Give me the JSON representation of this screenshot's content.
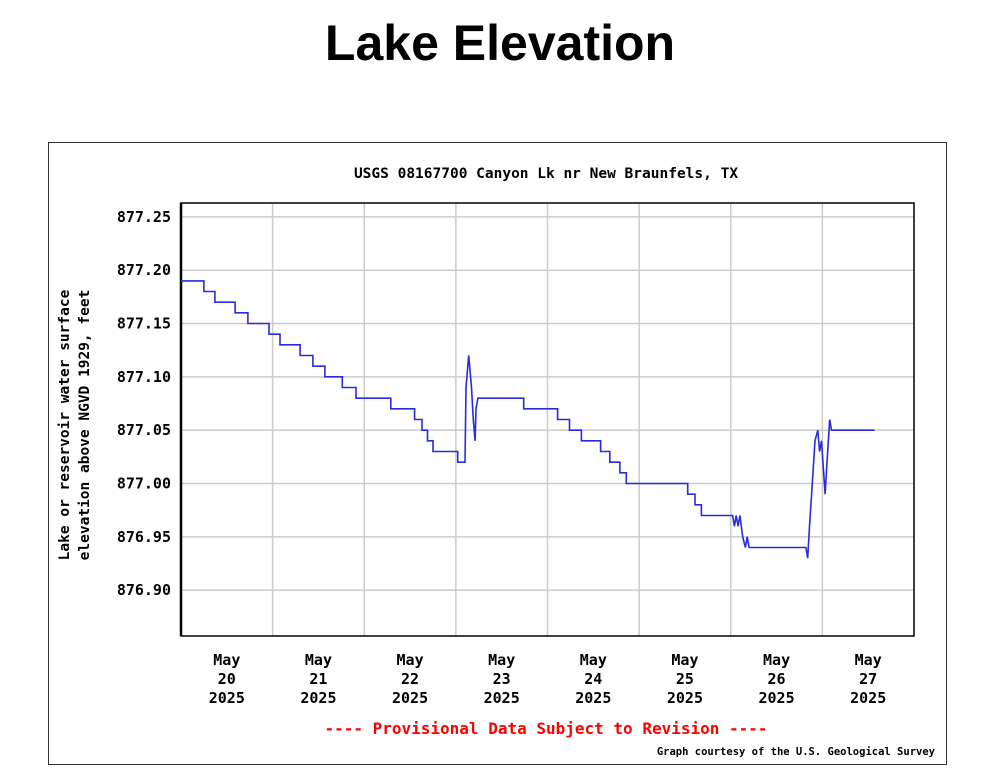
{
  "page_title": "Lake Elevation",
  "chart_data": {
    "type": "line",
    "title": "USGS 08167700 Canyon Lk nr New Braunfels, TX",
    "ylabel_lines": [
      "Lake or reservoir water surface",
      "elevation above NGVD 1929, feet"
    ],
    "xlabel": "",
    "ylim": [
      876.857,
      877.263
    ],
    "yticks": [
      877.25,
      877.2,
      877.15,
      877.1,
      877.05,
      877.0,
      876.95,
      876.9
    ],
    "ytick_labels": [
      "877.25",
      "877.20",
      "877.15",
      "877.10",
      "877.05",
      "877.00",
      "876.95",
      "876.90"
    ],
    "x_unit": "days since May 20 2025 00:00",
    "xlim": [
      0,
      8
    ],
    "xticks": [
      {
        "month": "May",
        "day": "20",
        "year": "2025"
      },
      {
        "month": "May",
        "day": "21",
        "year": "2025"
      },
      {
        "month": "May",
        "day": "22",
        "year": "2025"
      },
      {
        "month": "May",
        "day": "23",
        "year": "2025"
      },
      {
        "month": "May",
        "day": "24",
        "year": "2025"
      },
      {
        "month": "May",
        "day": "25",
        "year": "2025"
      },
      {
        "month": "May",
        "day": "26",
        "year": "2025"
      },
      {
        "month": "May",
        "day": "27",
        "year": "2025"
      }
    ],
    "grid": true,
    "series": [
      {
        "name": "Lake elevation",
        "color": "#2a2ae0",
        "points": [
          [
            0,
            877.19
          ],
          [
            0.25,
            877.19
          ],
          [
            0.25,
            877.18
          ],
          [
            0.37,
            877.18
          ],
          [
            0.37,
            877.17
          ],
          [
            0.59,
            877.17
          ],
          [
            0.59,
            877.16
          ],
          [
            0.73,
            877.16
          ],
          [
            0.73,
            877.15
          ],
          [
            0.96,
            877.15
          ],
          [
            0.96,
            877.14
          ],
          [
            1.08,
            877.14
          ],
          [
            1.08,
            877.13
          ],
          [
            1.3,
            877.13
          ],
          [
            1.3,
            877.12
          ],
          [
            1.44,
            877.12
          ],
          [
            1.44,
            877.11
          ],
          [
            1.57,
            877.11
          ],
          [
            1.57,
            877.1
          ],
          [
            1.76,
            877.1
          ],
          [
            1.76,
            877.09
          ],
          [
            1.91,
            877.09
          ],
          [
            1.91,
            877.08
          ],
          [
            2.29,
            877.08
          ],
          [
            2.29,
            877.07
          ],
          [
            2.55,
            877.07
          ],
          [
            2.55,
            877.06
          ],
          [
            2.63,
            877.06
          ],
          [
            2.63,
            877.05
          ],
          [
            2.69,
            877.05
          ],
          [
            2.69,
            877.04
          ],
          [
            2.75,
            877.04
          ],
          [
            2.75,
            877.03
          ],
          [
            3.02,
            877.03
          ],
          [
            3.02,
            877.02
          ],
          [
            3.1,
            877.02
          ],
          [
            3.11,
            877.09
          ],
          [
            3.14,
            877.12
          ],
          [
            3.17,
            877.09
          ],
          [
            3.19,
            877.06
          ],
          [
            3.21,
            877.04
          ],
          [
            3.22,
            877.07
          ],
          [
            3.24,
            877.08
          ],
          [
            3.74,
            877.08
          ],
          [
            3.74,
            877.07
          ],
          [
            4.11,
            877.07
          ],
          [
            4.11,
            877.06
          ],
          [
            4.24,
            877.06
          ],
          [
            4.24,
            877.05
          ],
          [
            4.37,
            877.05
          ],
          [
            4.37,
            877.04
          ],
          [
            4.58,
            877.04
          ],
          [
            4.58,
            877.03
          ],
          [
            4.68,
            877.03
          ],
          [
            4.68,
            877.02
          ],
          [
            4.79,
            877.02
          ],
          [
            4.79,
            877.01
          ],
          [
            4.86,
            877.01
          ],
          [
            4.86,
            877.0
          ],
          [
            5.53,
            877.0
          ],
          [
            5.53,
            876.99
          ],
          [
            5.61,
            876.99
          ],
          [
            5.61,
            876.98
          ],
          [
            5.68,
            876.98
          ],
          [
            5.68,
            876.97
          ],
          [
            6.02,
            876.97
          ],
          [
            6.04,
            876.96
          ],
          [
            6.06,
            876.97
          ],
          [
            6.08,
            876.96
          ],
          [
            6.1,
            876.97
          ],
          [
            6.13,
            876.95
          ],
          [
            6.16,
            876.94
          ],
          [
            6.18,
            876.95
          ],
          [
            6.2,
            876.94
          ],
          [
            6.23,
            876.94
          ],
          [
            6.82,
            876.94
          ],
          [
            6.84,
            876.93
          ],
          [
            6.86,
            876.96
          ],
          [
            6.89,
            877.0
          ],
          [
            6.92,
            877.04
          ],
          [
            6.95,
            877.05
          ],
          [
            6.97,
            877.03
          ],
          [
            6.99,
            877.04
          ],
          [
            7.03,
            876.99
          ],
          [
            7.05,
            877.02
          ],
          [
            7.08,
            877.06
          ],
          [
            7.1,
            877.05
          ],
          [
            7.57,
            877.05
          ]
        ]
      }
    ],
    "footer_notice": "---- Provisional Data Subject to Revision ----",
    "credit": "Graph courtesy of the U.S. Geological Survey",
    "notice_color": "#ff0000",
    "grid_color": "#cccccc"
  }
}
